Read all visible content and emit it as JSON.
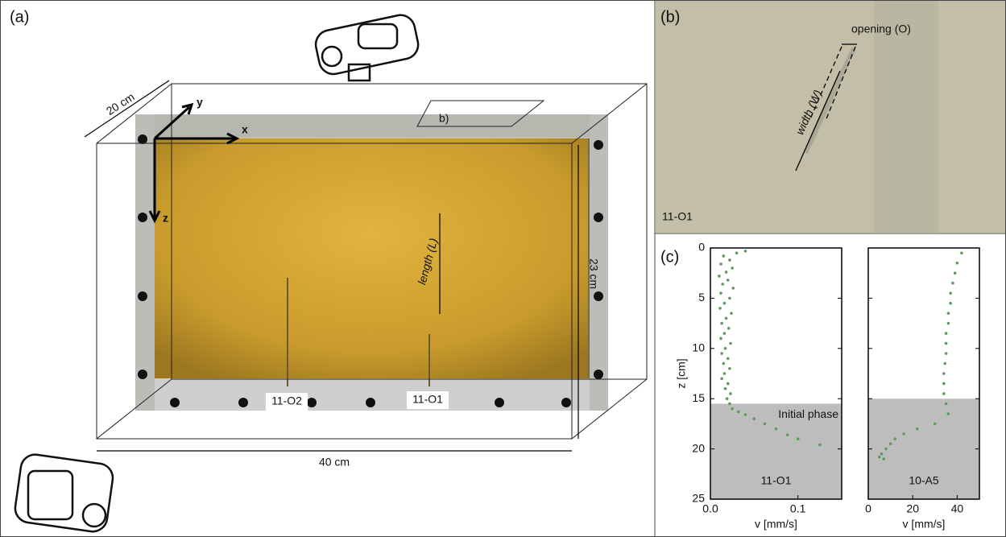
{
  "panel_a": {
    "label": "(a)",
    "depth": "20 cm",
    "height": "23 cm",
    "length": "40 cm",
    "axes": {
      "x": "x",
      "y": "y",
      "z": "z"
    },
    "inset_marker": "b)",
    "annotation": "length (L)",
    "samples": [
      "11-O2",
      "11-O1"
    ]
  },
  "panel_b": {
    "label": "(b)",
    "opening": "opening (O)",
    "width": "width (W)",
    "sample": "11-O1"
  },
  "panel_c": {
    "label": "(c)"
  },
  "chart_data": [
    {
      "type": "scatter",
      "xlabel": "v [mm/s]",
      "ylabel": "z [cm]",
      "sample": "11-O1",
      "phase_label": "Initial phase",
      "xlim": [
        0,
        0.15
      ],
      "ylim": [
        0,
        25
      ],
      "y_inverted": true,
      "xticks": [
        {
          "value": 0,
          "label": "0.0"
        },
        {
          "value": 0.1,
          "label": "0.1"
        }
      ],
      "yticks": [
        0,
        5,
        10,
        15,
        20,
        25
      ],
      "ytick_labels": true,
      "shade_from": 15.5,
      "shade_color": "#bdbdbd",
      "x": [
        0.04,
        0.03,
        0.015,
        0.022,
        0.012,
        0.025,
        0.018,
        0.01,
        0.02,
        0.014,
        0.026,
        0.012,
        0.022,
        0.016,
        0.011,
        0.024,
        0.018,
        0.013,
        0.021,
        0.016,
        0.012,
        0.023,
        0.017,
        0.013,
        0.02,
        0.015,
        0.022,
        0.016,
        0.013,
        0.02,
        0.017,
        0.023,
        0.019,
        0.022,
        0.025,
        0.032,
        0.04,
        0.05,
        0.062,
        0.075,
        0.088,
        0.1,
        0.125
      ],
      "series": [
        {
          "color": "#5f9a5f",
          "values": [
            0.3,
            0.5,
            0.8,
            1.2,
            1.6,
            2.0,
            2.4,
            2.8,
            3.2,
            3.6,
            4.0,
            4.5,
            5.0,
            5.5,
            6.0,
            6.5,
            7.0,
            7.5,
            8.0,
            8.5,
            9.0,
            9.5,
            10.0,
            10.5,
            11.0,
            11.5,
            12.0,
            12.5,
            13.0,
            13.5,
            14.0,
            14.5,
            15.0,
            15.5,
            16.0,
            16.3,
            16.6,
            17.0,
            17.5,
            18.0,
            18.6,
            19.0,
            19.6
          ]
        }
      ]
    },
    {
      "type": "scatter",
      "xlabel": "v [mm/s]",
      "sample": "10-A5",
      "xlim": [
        0,
        50
      ],
      "ylim": [
        0,
        25
      ],
      "y_inverted": true,
      "xticks": [
        0,
        20,
        40
      ],
      "yticks": [
        0,
        5,
        10,
        15,
        20,
        25
      ],
      "ytick_labels": false,
      "shade_from": 15,
      "shade_color": "#bdbdbd",
      "x": [
        42,
        40,
        39,
        38,
        37,
        37,
        36,
        36,
        35,
        35,
        35,
        34.5,
        34,
        34,
        34,
        35,
        36,
        30,
        22,
        16,
        12,
        10,
        8,
        6,
        5,
        7
      ],
      "series": [
        {
          "color": "#5f9a5f",
          "values": [
            0.5,
            1.5,
            2.5,
            3.5,
            4.5,
            5.5,
            6.5,
            7.5,
            8.5,
            9.5,
            10.5,
            11.5,
            12.5,
            13.5,
            14.5,
            15.5,
            16.5,
            17.5,
            18,
            18.5,
            19,
            19.5,
            20,
            20.5,
            20.8,
            21
          ]
        }
      ]
    }
  ]
}
